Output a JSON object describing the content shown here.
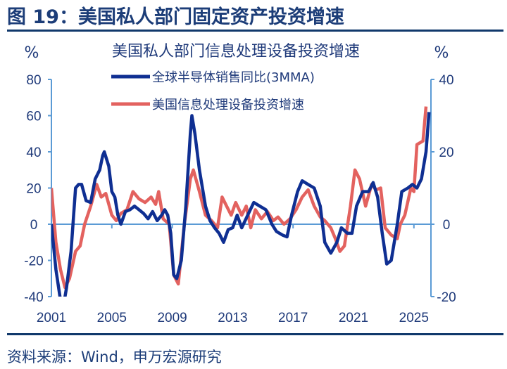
{
  "figure_title": "图 19：美国私人部门固定资产投资增速",
  "source": "资料来源：Wind，申万宏源研究",
  "colors": {
    "title": "#1c3d78",
    "axis": "#5b9bd5",
    "semiconductor": "#0f2f92",
    "it_investment": "#e3625f"
  },
  "chart_data": {
    "type": "line",
    "title": "美国私人部门信息处理设备投资增速",
    "left_unit": "%",
    "right_unit": "%",
    "left_ylim": [
      -40,
      80
    ],
    "right_ylim": [
      -20,
      40
    ],
    "left_ticks": [
      "80",
      "60",
      "40",
      "20",
      "0",
      "-20",
      "-40"
    ],
    "right_ticks": [
      "40",
      "20",
      "0",
      "-20"
    ],
    "x_ticks": [
      "2001",
      "2005",
      "2009",
      "2013",
      "2017",
      "2021",
      "2025"
    ],
    "grid": false,
    "legend_position": "top-center",
    "series": [
      {
        "name": "全球半导体销售同比(3MMA)",
        "axis": "left",
        "x": [
          2001.0,
          2001.3,
          2001.6,
          2001.8,
          2002.0,
          2002.3,
          2002.6,
          2002.8,
          2003.0,
          2003.3,
          2003.6,
          2003.9,
          2004.2,
          2004.4,
          2004.5,
          2004.8,
          2005.0,
          2005.2,
          2005.4,
          2005.6,
          2005.9,
          2006.2,
          2006.5,
          2006.8,
          2007.1,
          2007.4,
          2007.7,
          2008.0,
          2008.3,
          2008.5,
          2008.7,
          2008.9,
          2009.1,
          2009.3,
          2009.6,
          2009.9,
          2010.2,
          2010.3,
          2010.5,
          2010.8,
          2011.2,
          2011.5,
          2011.8,
          2012.1,
          2012.4,
          2012.7,
          2013.0,
          2013.3,
          2013.6,
          2014.0,
          2014.4,
          2014.8,
          2015.2,
          2015.6,
          2015.9,
          2016.3,
          2016.6,
          2016.9,
          2017.3,
          2017.6,
          2018.0,
          2018.4,
          2018.8,
          2019.1,
          2019.5,
          2019.9,
          2020.2,
          2020.6,
          2020.9,
          2021.2,
          2021.6,
          2022.0,
          2022.3,
          2022.6,
          2022.9,
          2023.2,
          2023.5,
          2023.9,
          2024.2,
          2024.6,
          2024.9,
          2025.2,
          2025.5,
          2025.8,
          2026.0
        ],
        "y": [
          0,
          -25,
          -42,
          -45,
          -35,
          -15,
          20,
          22,
          22,
          13,
          12,
          25,
          30,
          38,
          40,
          32,
          18,
          15,
          5,
          0,
          7,
          8,
          10,
          8,
          6,
          3,
          7,
          2,
          5,
          8,
          5,
          -5,
          -28,
          -30,
          -20,
          10,
          50,
          60,
          50,
          30,
          10,
          2,
          -2,
          -5,
          -10,
          -3,
          -2,
          5,
          -2,
          5,
          12,
          10,
          8,
          0,
          -4,
          -6,
          -7,
          5,
          18,
          24,
          22,
          20,
          10,
          -10,
          -16,
          -10,
          -2,
          -5,
          -5,
          10,
          18,
          18,
          23,
          15,
          -5,
          -22,
          -20,
          0,
          18,
          20,
          22,
          20,
          25,
          40,
          62
        ]
      },
      {
        "name": "美国信息处理设备投资增速",
        "axis": "right",
        "x": [
          2001.0,
          2001.3,
          2001.6,
          2001.9,
          2002.2,
          2002.6,
          2002.9,
          2003.2,
          2003.6,
          2004.0,
          2004.3,
          2004.6,
          2005.0,
          2005.3,
          2005.6,
          2006.0,
          2006.4,
          2006.8,
          2007.2,
          2007.6,
          2007.9,
          2008.1,
          2008.4,
          2008.8,
          2009.1,
          2009.4,
          2009.8,
          2010.2,
          2010.4,
          2010.8,
          2011.2,
          2011.6,
          2012.0,
          2012.3,
          2012.6,
          2012.9,
          2013.2,
          2013.6,
          2013.9,
          2014.2,
          2014.5,
          2014.9,
          2015.3,
          2015.7,
          2016.0,
          2016.4,
          2016.8,
          2017.2,
          2017.6,
          2018.0,
          2018.4,
          2018.8,
          2019.1,
          2019.5,
          2019.8,
          2020.1,
          2020.4,
          2020.8,
          2021.1,
          2021.4,
          2021.8,
          2022.2,
          2022.5,
          2022.8,
          2023.1,
          2023.5,
          2023.9,
          2024.1,
          2024.4,
          2024.8,
          2025.0,
          2025.2,
          2025.6,
          2025.8
        ],
        "y": [
          10,
          -5,
          -12.5,
          -17.5,
          -15,
          -7.5,
          -6,
          0,
          5,
          11,
          7.5,
          8.5,
          2.5,
          1,
          3,
          4,
          9,
          7,
          6,
          7.5,
          5.5,
          9,
          1.5,
          0,
          -14,
          -16.5,
          0,
          12.5,
          15,
          9,
          2.5,
          1,
          -1,
          7.5,
          5,
          2.5,
          6,
          2.5,
          5,
          -1,
          4,
          1.5,
          3.5,
          1,
          2,
          0,
          1.5,
          4,
          7.5,
          9.5,
          5,
          2,
          1,
          -1,
          -4,
          -7.5,
          -6,
          5,
          15,
          12.5,
          5,
          11,
          9.5,
          10,
          -1,
          -3,
          -4,
          0,
          2.5,
          10,
          9,
          22,
          23,
          32.5
        ]
      }
    ]
  }
}
